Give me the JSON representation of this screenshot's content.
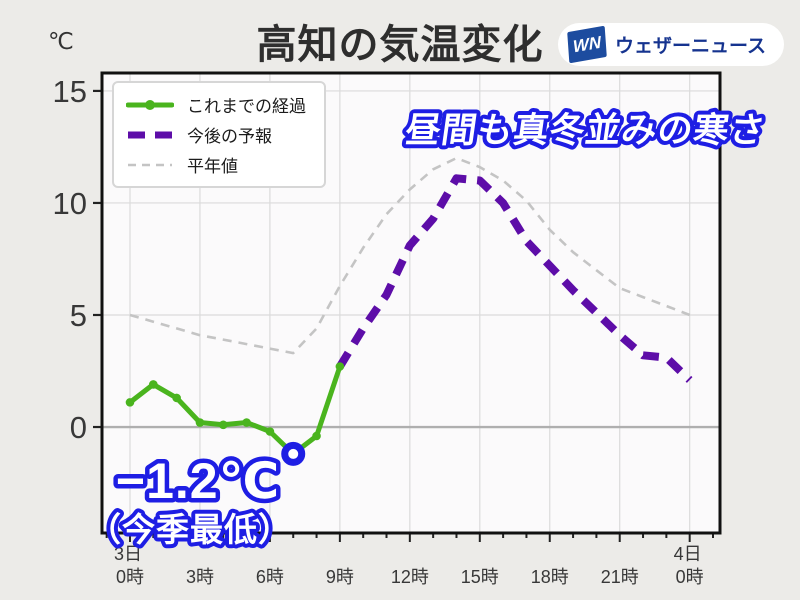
{
  "page": {
    "title": "高知の気温変化",
    "y_axis_unit": "℃"
  },
  "logo": {
    "mark": "WN",
    "name": "ウェザーニュース"
  },
  "legend": [
    {
      "id": "observed",
      "label": "これまでの経過",
      "swatch": "green-solid-marker"
    },
    {
      "id": "forecast",
      "label": "今後の予報",
      "swatch": "purple-dashed"
    },
    {
      "id": "normal",
      "label": "平年値",
      "swatch": "gray-dashed"
    }
  ],
  "annotations": {
    "headline": "昼間も真冬並みの寒さ",
    "min_temp": "−1.2℃",
    "min_temp_note": "（今季最低）"
  },
  "colors": {
    "background": "#ECEBE8",
    "plot_background": "#FBFAFB",
    "grid": "#DBDBDB",
    "zero_line": "#AFAFAF",
    "frame": "#111111",
    "tick_text": "#383838",
    "observed_green": "#4AB41E",
    "forecast_purple": "#5D0DA8",
    "normal_gray": "#C4C4C4",
    "annotation_blue": "#1E1EE4",
    "logo_blue": "#1D4C9F",
    "logo_text_blue": "#15338F"
  },
  "chart_data": {
    "type": "line",
    "title": "高知の気温変化",
    "ylabel": "℃",
    "xlim": [
      -1.2,
      25.3
    ],
    "ylim": [
      -4.73,
      15.8
    ],
    "grid": true,
    "legend_position": "upper-left",
    "x_ticks": [
      {
        "hour": 0,
        "label": "0時",
        "date_label": "3日"
      },
      {
        "hour": 3,
        "label": "3時"
      },
      {
        "hour": 6,
        "label": "6時"
      },
      {
        "hour": 9,
        "label": "9時"
      },
      {
        "hour": 12,
        "label": "12時"
      },
      {
        "hour": 15,
        "label": "15時"
      },
      {
        "hour": 18,
        "label": "18時"
      },
      {
        "hour": 21,
        "label": "21時"
      },
      {
        "hour": 24,
        "label": "0時",
        "date_label": "4日"
      }
    ],
    "y_ticks": [
      {
        "value": 0,
        "label": "0"
      },
      {
        "value": 5,
        "label": "5"
      },
      {
        "value": 10,
        "label": "10"
      },
      {
        "value": 15,
        "label": "15"
      }
    ],
    "series": [
      {
        "name": "平年値",
        "style": "dashed-thin",
        "color_key": "normal_gray",
        "x": [
          0,
          1,
          2,
          3,
          4,
          5,
          6,
          7,
          8,
          9,
          10,
          11,
          12,
          13,
          14,
          15,
          16,
          17,
          18,
          19,
          20,
          21,
          22,
          23,
          24
        ],
        "values": [
          5.0,
          4.7,
          4.4,
          4.1,
          3.9,
          3.7,
          3.5,
          3.3,
          4.4,
          6.3,
          8.0,
          9.5,
          10.6,
          11.5,
          12.0,
          11.6,
          11.0,
          10.1,
          8.8,
          7.8,
          7.0,
          6.2,
          5.8,
          5.4,
          5.0
        ]
      },
      {
        "name": "今後の予報",
        "style": "dashed-thick",
        "color_key": "forecast_purple",
        "x": [
          9,
          10,
          11,
          12,
          13,
          14,
          15,
          16,
          17,
          18,
          19,
          20,
          21,
          22,
          23,
          24
        ],
        "values": [
          2.7,
          4.4,
          5.9,
          8.1,
          9.3,
          11.1,
          11.0,
          10.0,
          8.3,
          7.2,
          6.1,
          5.1,
          4.1,
          3.2,
          3.1,
          2.1
        ]
      },
      {
        "name": "これまでの経過",
        "style": "solid-marker",
        "color_key": "observed_green",
        "x": [
          0,
          1,
          2,
          3,
          4,
          5,
          6,
          7,
          8,
          9
        ],
        "values": [
          1.1,
          1.9,
          1.3,
          0.2,
          0.1,
          0.2,
          -0.2,
          -1.2,
          -0.4,
          2.7
        ]
      }
    ],
    "highlight_point": {
      "hour": 7,
      "value": -1.2,
      "label": "−1.2℃",
      "note": "（今季最低）"
    }
  }
}
